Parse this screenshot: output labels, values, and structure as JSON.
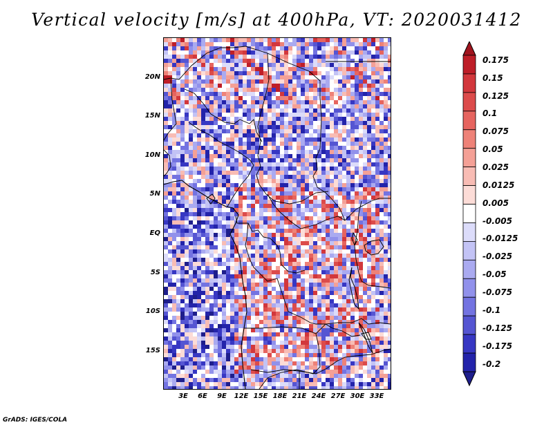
{
  "title": "Vertical velocity [m/s] at 400hPa, VT: 2020031412",
  "credit": "GrADS: IGES/COLA",
  "lat_labels": [
    "20N",
    "15N",
    "10N",
    "5N",
    "EQ",
    "5S",
    "10S",
    "15S"
  ],
  "lon_labels": [
    "3E",
    "6E",
    "9E",
    "12E",
    "15E",
    "18E",
    "21E",
    "24E",
    "27E",
    "30E",
    "33E"
  ],
  "colorbar": {
    "labels": [
      "0.175",
      "0.15",
      "0.125",
      "0.1",
      "0.075",
      "0.05",
      "0.025",
      "0.0125",
      "0.005",
      "-0.005",
      "-0.0125",
      "-0.025",
      "-0.05",
      "-0.075",
      "-0.1",
      "-0.125",
      "-0.175",
      "-0.2"
    ],
    "colors": [
      "#a0141e",
      "#be1e28",
      "#d2373c",
      "#dc4b4b",
      "#e6645f",
      "#ee8278",
      "#f4a096",
      "#f8bcb4",
      "#fcdcd7",
      "#ffffff",
      "#dcdcfa",
      "#c3c3f5",
      "#aaaaf0",
      "#9191eb",
      "#7373e1",
      "#5555d2",
      "#3737c3",
      "#2323aa",
      "#1e1e8c"
    ]
  }
}
